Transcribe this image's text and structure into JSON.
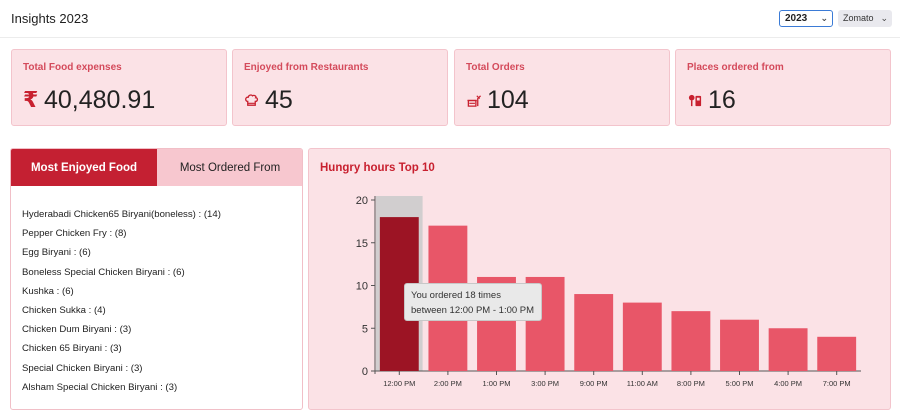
{
  "header": {
    "title": "Insights 2023",
    "year_select": {
      "value": "2023"
    },
    "platform_select": {
      "value": "Zomato"
    }
  },
  "stats": [
    {
      "label": "Total Food expenses",
      "icon": "rupee-icon",
      "prefix": "₹",
      "value": "40,480.91"
    },
    {
      "label": "Enjoyed from Restaurants",
      "icon": "chef-hat-icon",
      "value": "45"
    },
    {
      "label": "Total Orders",
      "icon": "food-tray-icon",
      "value": "104"
    },
    {
      "label": "Places ordered from",
      "icon": "location-icon",
      "value": "16"
    }
  ],
  "tabs": {
    "active": "Most Enjoyed Food",
    "inactive": "Most Ordered From"
  },
  "food_list": [
    "Hyderabadi Chicken65 Biryani(boneless) : (14)",
    "Pepper Chicken Fry : (8)",
    "Egg Biryani : (6)",
    "Boneless Special Chicken Biryani : (6)",
    "Kushka : (6)",
    "Chicken Sukka : (4)",
    "Chicken Dum Biryani : (3)",
    "Chicken 65 Biryani : (3)",
    "Special Chicken Biryani : (3)",
    "Alsham Special Chicken Biryani : (3)"
  ],
  "chart_data": {
    "type": "bar",
    "title": "Hungry hours Top 10",
    "categories": [
      "12:00 PM",
      "2:00 PM",
      "1:00 PM",
      "3:00 PM",
      "9:00 PM",
      "11:00 AM",
      "8:00 PM",
      "5:00 PM",
      "4:00 PM",
      "7:00 PM"
    ],
    "values": [
      18,
      17,
      11,
      11,
      9,
      8,
      7,
      6,
      5,
      4
    ],
    "ylim": [
      0,
      20
    ],
    "yticks": [
      0,
      5,
      10,
      15,
      20
    ],
    "highlighted_index": 0,
    "colors": {
      "bar": "#e85668",
      "bar_highlight": "#9c1424",
      "hover_band": "#cccccc"
    }
  },
  "tooltip": {
    "line1": "You ordered 18 times",
    "line2": "between 12:00 PM - 1:00 PM"
  }
}
